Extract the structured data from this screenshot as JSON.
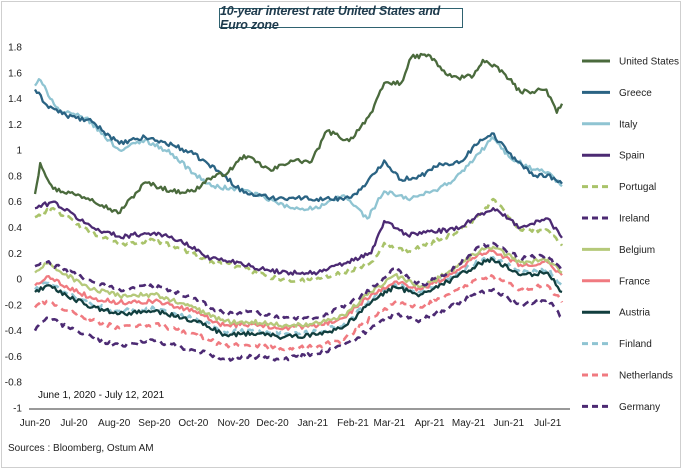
{
  "title": "10-year interest rate United States and Euro zone",
  "period_note": "June 1, 2020 - July 12, 2021",
  "sources": "Sources : Bloomberg, Ostum AM",
  "chart_data": {
    "type": "line",
    "title": "10-year interest rate United States and Euro zone",
    "ylim": [
      -1,
      1.8
    ],
    "y_ticks": [
      "1.8",
      "1.6",
      "1.4",
      "1.2",
      "1",
      "0.8",
      "0.6",
      "0.4",
      "0.2",
      "0",
      "-0.2",
      "-0.4",
      "-0.6",
      "-0.8",
      "-1"
    ],
    "y_tick_values": [
      1.8,
      1.6,
      1.4,
      1.2,
      1,
      0.8,
      0.6,
      0.4,
      0.2,
      0,
      -0.2,
      -0.4,
      -0.6,
      -0.8,
      -1
    ],
    "x_ticks": [
      "Jun-20",
      "Jul-20",
      "Aug-20",
      "Sep-20",
      "Oct-20",
      "Nov-20",
      "Dec-20",
      "Jan-21",
      "Feb-21",
      "Mar-21",
      "Apr-21",
      "May-21",
      "Jun-21",
      "Jul-21"
    ],
    "x_start": "2020-06-01",
    "x_end": "2021-07-12",
    "grid": false,
    "legend_position": "right",
    "series": [
      {
        "name": "United States",
        "color": "#4a6a3c",
        "dash": false,
        "dates": [
          "2020-06-01",
          "2020-06-05",
          "2020-06-15",
          "2020-07-01",
          "2020-07-15",
          "2020-08-04",
          "2020-08-25",
          "2020-09-15",
          "2020-10-01",
          "2020-10-13",
          "2020-10-28",
          "2020-11-09",
          "2020-11-30",
          "2020-12-15",
          "2020-12-31",
          "2021-01-12",
          "2021-01-29",
          "2021-02-16",
          "2021-02-25",
          "2021-03-10",
          "2021-03-18",
          "2021-03-31",
          "2021-04-15",
          "2021-04-23",
          "2021-05-05",
          "2021-05-12",
          "2021-05-28",
          "2021-06-10",
          "2021-06-30",
          "2021-07-08",
          "2021-07-12"
        ],
        "values": [
          0.66,
          0.9,
          0.7,
          0.66,
          0.62,
          0.51,
          0.75,
          0.68,
          0.68,
          0.78,
          0.83,
          0.96,
          0.84,
          0.92,
          0.91,
          1.15,
          1.07,
          1.3,
          1.52,
          1.52,
          1.72,
          1.74,
          1.58,
          1.56,
          1.58,
          1.7,
          1.6,
          1.45,
          1.47,
          1.29,
          1.36
        ]
      },
      {
        "name": "Greece",
        "color": "#2a6383",
        "dash": false,
        "dates": [
          "2020-06-01",
          "2020-06-10",
          "2020-06-25",
          "2020-07-15",
          "2020-08-05",
          "2020-08-25",
          "2020-09-15",
          "2020-10-01",
          "2020-10-20",
          "2020-11-09",
          "2020-11-30",
          "2020-12-20",
          "2021-01-10",
          "2021-01-29",
          "2021-02-10",
          "2021-02-25",
          "2021-03-10",
          "2021-03-25",
          "2021-04-10",
          "2021-04-25",
          "2021-05-10",
          "2021-05-19",
          "2021-06-01",
          "2021-06-20",
          "2021-07-01",
          "2021-07-12"
        ],
        "values": [
          1.47,
          1.35,
          1.27,
          1.22,
          1.05,
          1.1,
          1.04,
          0.97,
          0.84,
          0.67,
          0.63,
          0.63,
          0.62,
          0.63,
          0.72,
          0.92,
          0.77,
          0.8,
          0.89,
          0.91,
          1.08,
          1.13,
          0.98,
          0.8,
          0.81,
          0.74
        ]
      },
      {
        "name": "Italy",
        "color": "#8fc4d2",
        "dash": false,
        "dates": [
          "2020-06-01",
          "2020-06-04",
          "2020-06-20",
          "2020-07-10",
          "2020-08-05",
          "2020-08-25",
          "2020-09-15",
          "2020-10-01",
          "2020-10-15",
          "2020-11-09",
          "2020-11-25",
          "2020-12-15",
          "2021-01-05",
          "2021-01-25",
          "2021-02-12",
          "2021-02-25",
          "2021-03-15",
          "2021-04-01",
          "2021-04-20",
          "2021-05-10",
          "2021-05-19",
          "2021-06-01",
          "2021-06-20",
          "2021-07-01",
          "2021-07-12"
        ],
        "values": [
          1.5,
          1.55,
          1.3,
          1.25,
          1.0,
          1.08,
          0.97,
          0.82,
          0.72,
          0.69,
          0.63,
          0.55,
          0.55,
          0.65,
          0.47,
          0.68,
          0.62,
          0.67,
          0.77,
          0.98,
          1.1,
          0.95,
          0.85,
          0.83,
          0.72
        ]
      },
      {
        "name": "Spain",
        "color": "#4c2a73",
        "dash": false,
        "dates": [
          "2020-06-01",
          "2020-06-15",
          "2020-07-15",
          "2020-08-05",
          "2020-09-01",
          "2020-09-20",
          "2020-10-15",
          "2020-11-05",
          "2020-11-25",
          "2020-12-15",
          "2021-01-05",
          "2021-01-25",
          "2021-02-15",
          "2021-02-25",
          "2021-03-15",
          "2021-04-01",
          "2021-04-20",
          "2021-05-10",
          "2021-05-20",
          "2021-06-10",
          "2021-07-01",
          "2021-07-12"
        ],
        "values": [
          0.55,
          0.6,
          0.4,
          0.33,
          0.36,
          0.3,
          0.16,
          0.13,
          0.07,
          0.05,
          0.05,
          0.12,
          0.2,
          0.45,
          0.34,
          0.37,
          0.38,
          0.5,
          0.55,
          0.4,
          0.47,
          0.32
        ]
      },
      {
        "name": "Portugal",
        "color": "#a9c36a",
        "dash": true,
        "dates": [
          "2020-06-01",
          "2020-06-15",
          "2020-07-15",
          "2020-08-05",
          "2020-09-01",
          "2020-09-20",
          "2020-10-15",
          "2020-11-05",
          "2020-11-25",
          "2020-12-15",
          "2021-01-05",
          "2021-01-25",
          "2021-02-15",
          "2021-02-25",
          "2021-03-15",
          "2021-04-01",
          "2021-04-20",
          "2021-05-10",
          "2021-05-20",
          "2021-06-10",
          "2021-07-01",
          "2021-07-12"
        ],
        "values": [
          0.48,
          0.55,
          0.35,
          0.27,
          0.3,
          0.24,
          0.14,
          0.1,
          0.03,
          -0.02,
          0.01,
          0.05,
          0.13,
          0.28,
          0.21,
          0.28,
          0.35,
          0.5,
          0.62,
          0.38,
          0.38,
          0.26
        ]
      },
      {
        "name": "Ireland",
        "color": "#4c2a73",
        "dash": true,
        "dates": [
          "2020-06-01",
          "2020-06-10",
          "2020-07-15",
          "2020-08-05",
          "2020-09-01",
          "2020-10-01",
          "2020-10-25",
          "2020-11-15",
          "2020-12-10",
          "2021-01-05",
          "2021-01-25",
          "2021-02-15",
          "2021-03-05",
          "2021-03-25",
          "2021-04-15",
          "2021-05-10",
          "2021-05-20",
          "2021-06-10",
          "2021-07-01",
          "2021-07-12"
        ],
        "values": [
          0.1,
          0.13,
          -0.02,
          -0.08,
          -0.05,
          -0.15,
          -0.27,
          -0.25,
          -0.3,
          -0.3,
          -0.22,
          -0.08,
          0.08,
          -0.05,
          0.05,
          0.25,
          0.28,
          0.16,
          0.18,
          0.06
        ]
      },
      {
        "name": "Belgium",
        "color": "#b5c97a",
        "dash": false,
        "dates": [
          "2020-06-01",
          "2020-06-10",
          "2020-07-15",
          "2020-08-05",
          "2020-09-01",
          "2020-10-01",
          "2020-10-25",
          "2020-11-15",
          "2020-12-10",
          "2021-01-05",
          "2021-01-25",
          "2021-02-15",
          "2021-03-05",
          "2021-03-25",
          "2021-04-15",
          "2021-05-10",
          "2021-05-20",
          "2021-06-10",
          "2021-07-01",
          "2021-07-12"
        ],
        "values": [
          0.05,
          0.12,
          -0.08,
          -0.13,
          -0.12,
          -0.22,
          -0.33,
          -0.33,
          -0.36,
          -0.34,
          -0.28,
          -0.1,
          0.03,
          -0.06,
          0.05,
          0.22,
          0.25,
          0.13,
          0.15,
          0.05
        ]
      },
      {
        "name": "France",
        "color": "#f07a80",
        "dash": false,
        "dates": [
          "2020-06-01",
          "2020-06-10",
          "2020-07-15",
          "2020-08-05",
          "2020-09-01",
          "2020-10-01",
          "2020-10-25",
          "2020-11-15",
          "2020-12-10",
          "2021-01-05",
          "2021-01-25",
          "2021-02-15",
          "2021-03-05",
          "2021-03-25",
          "2021-04-15",
          "2021-05-10",
          "2021-05-20",
          "2021-06-10",
          "2021-07-01",
          "2021-07-12"
        ],
        "values": [
          -0.05,
          0.02,
          -0.15,
          -0.18,
          -0.17,
          -0.25,
          -0.36,
          -0.35,
          -0.38,
          -0.36,
          -0.3,
          -0.12,
          -0.02,
          -0.08,
          0.02,
          0.2,
          0.22,
          0.11,
          0.13,
          0.03
        ]
      },
      {
        "name": "Austria",
        "color": "#113e3e",
        "dash": false,
        "dates": [
          "2020-06-01",
          "2020-06-10",
          "2020-07-15",
          "2020-08-05",
          "2020-09-01",
          "2020-10-01",
          "2020-10-25",
          "2020-11-15",
          "2020-12-10",
          "2021-01-05",
          "2021-01-25",
          "2021-02-15",
          "2021-03-05",
          "2021-03-25",
          "2021-04-15",
          "2021-05-10",
          "2021-05-20",
          "2021-06-10",
          "2021-07-01",
          "2021-07-12"
        ],
        "values": [
          -0.1,
          -0.05,
          -0.22,
          -0.27,
          -0.25,
          -0.32,
          -0.43,
          -0.42,
          -0.45,
          -0.43,
          -0.37,
          -0.18,
          -0.06,
          -0.12,
          -0.02,
          0.12,
          0.15,
          0.03,
          0.05,
          -0.1
        ]
      },
      {
        "name": "Finland",
        "color": "#8fc4d2",
        "dash": true,
        "dates": [
          "2020-06-01",
          "2020-06-10",
          "2020-07-15",
          "2020-08-05",
          "2020-09-01",
          "2020-10-01",
          "2020-10-25",
          "2020-11-15",
          "2020-12-10",
          "2021-01-05",
          "2021-01-25",
          "2021-02-15",
          "2021-03-05",
          "2021-03-25",
          "2021-04-15",
          "2021-05-10",
          "2021-05-20",
          "2021-06-10",
          "2021-07-01",
          "2021-07-12"
        ],
        "values": [
          -0.08,
          -0.03,
          -0.2,
          -0.25,
          -0.23,
          -0.3,
          -0.41,
          -0.4,
          -0.43,
          -0.41,
          -0.35,
          -0.16,
          -0.04,
          -0.1,
          0.0,
          0.15,
          0.17,
          0.05,
          0.08,
          -0.05
        ]
      },
      {
        "name": "Netherlands",
        "color": "#f07a80",
        "dash": true,
        "dates": [
          "2020-06-01",
          "2020-06-10",
          "2020-07-15",
          "2020-08-05",
          "2020-09-01",
          "2020-10-01",
          "2020-10-25",
          "2020-11-15",
          "2020-12-10",
          "2021-01-05",
          "2021-01-25",
          "2021-02-15",
          "2021-03-05",
          "2021-03-25",
          "2021-04-15",
          "2021-05-10",
          "2021-05-20",
          "2021-06-10",
          "2021-07-01",
          "2021-07-12"
        ],
        "values": [
          -0.22,
          -0.17,
          -0.32,
          -0.38,
          -0.35,
          -0.42,
          -0.52,
          -0.51,
          -0.55,
          -0.52,
          -0.47,
          -0.3,
          -0.18,
          -0.22,
          -0.12,
          0.0,
          0.02,
          -0.08,
          -0.05,
          -0.18
        ]
      },
      {
        "name": "Germany",
        "color": "#4c2a73",
        "dash": true,
        "dates": [
          "2020-06-01",
          "2020-06-10",
          "2020-07-15",
          "2020-08-05",
          "2020-09-01",
          "2020-10-01",
          "2020-10-25",
          "2020-11-15",
          "2020-12-10",
          "2021-01-05",
          "2021-01-25",
          "2021-02-15",
          "2021-03-05",
          "2021-03-25",
          "2021-04-15",
          "2021-05-10",
          "2021-05-20",
          "2021-06-10",
          "2021-07-01",
          "2021-07-12"
        ],
        "values": [
          -0.4,
          -0.3,
          -0.45,
          -0.52,
          -0.48,
          -0.55,
          -0.62,
          -0.6,
          -0.62,
          -0.58,
          -0.52,
          -0.38,
          -0.28,
          -0.32,
          -0.23,
          -0.1,
          -0.08,
          -0.2,
          -0.16,
          -0.3
        ]
      }
    ]
  }
}
